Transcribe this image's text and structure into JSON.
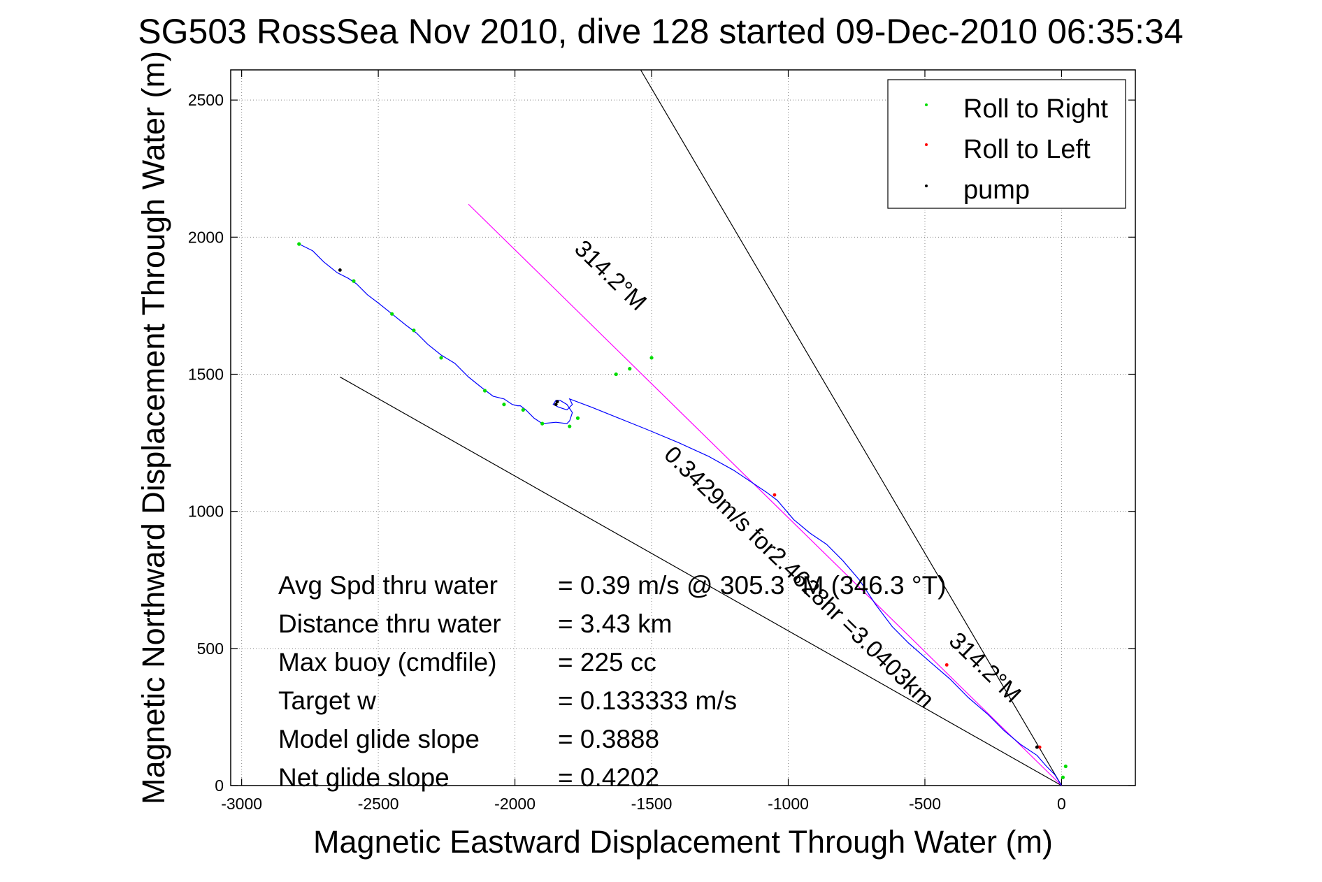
{
  "chart_data": {
    "type": "line",
    "title": "SG503 RossSea Nov 2010, dive 128 started 09-Dec-2010 06:35:34",
    "xlabel": "Magnetic Eastward Displacement Through Water (m)",
    "ylabel": "Magnetic Northward Displacement Through Water (m)",
    "xlim": [
      -3040,
      270
    ],
    "ylim": [
      0,
      2610
    ],
    "grid": true,
    "x_ticks": [
      -3000,
      -2500,
      -2000,
      -1500,
      -1000,
      -500,
      0
    ],
    "x_tick_labels": [
      "-3000",
      "-2500",
      "-2000",
      "-1500",
      "-1000",
      "-500",
      "0"
    ],
    "y_ticks": [
      0,
      500,
      1000,
      1500,
      2000,
      2500
    ],
    "y_tick_labels": [
      "0",
      "500",
      "1000",
      "1500",
      "2000",
      "2500"
    ],
    "legend_position": "top-right",
    "legend": [
      {
        "label": "Roll to Right",
        "color": "#00dd00"
      },
      {
        "label": "Roll to Left",
        "color": "#ff0000"
      },
      {
        "label": "pump",
        "color": "#000000"
      }
    ],
    "track": {
      "color": "#0000ff",
      "x": [
        0,
        -25,
        -55,
        -90,
        -150,
        -210,
        -270,
        -340,
        -410,
        -480,
        -560,
        -620,
        -680,
        -740,
        -800,
        -860,
        -920,
        -980,
        -1040,
        -1080,
        -1140,
        -1200,
        -1290,
        -1400,
        -1520,
        -1620,
        -1720,
        -1800,
        -1790,
        -1810,
        -1840,
        -1860,
        -1850,
        -1835,
        -1810,
        -1790,
        -1800,
        -1810,
        -1850,
        -1900,
        -1930,
        -1960,
        -1980,
        -1990,
        -2010,
        -2040,
        -2080,
        -2120,
        -2170,
        -2220,
        -2270,
        -2320,
        -2360,
        -2400,
        -2450,
        -2500,
        -2540,
        -2580,
        -2610,
        -2650,
        -2700,
        -2740,
        -2790
      ],
      "y": [
        0,
        40,
        70,
        110,
        150,
        200,
        260,
        320,
        390,
        450,
        520,
        580,
        660,
        750,
        820,
        880,
        920,
        970,
        1040,
        1070,
        1110,
        1150,
        1200,
        1250,
        1300,
        1340,
        1380,
        1410,
        1390,
        1370,
        1380,
        1390,
        1405,
        1405,
        1390,
        1360,
        1330,
        1320,
        1325,
        1320,
        1340,
        1370,
        1385,
        1385,
        1390,
        1410,
        1420,
        1450,
        1490,
        1540,
        1570,
        1610,
        1650,
        1680,
        1720,
        1760,
        1790,
        1830,
        1850,
        1870,
        1910,
        1950,
        1975
      ]
    },
    "heading_lines": [
      {
        "color": "#000000",
        "x": [
          0,
          -1540
        ],
        "y": [
          0,
          2610
        ]
      },
      {
        "color": "#000000",
        "x": [
          0,
          -2640
        ],
        "y": [
          0,
          1490
        ]
      },
      {
        "color": "#ff00ff",
        "x": [
          0,
          -2170
        ],
        "y": [
          0,
          2120
        ]
      }
    ],
    "roll_right_points": {
      "x": [
        5,
        15,
        -2790,
        -2590,
        -2450,
        -2370,
        -2270,
        -2110,
        -2040,
        -1970,
        -1900,
        -1800,
        -1770,
        -1630,
        -1580,
        -1500
      ],
      "y": [
        30,
        70,
        1975,
        1840,
        1720,
        1660,
        1560,
        1440,
        1390,
        1370,
        1320,
        1310,
        1340,
        1500,
        1520,
        1560
      ]
    },
    "roll_left_points": {
      "x": [
        -80,
        -420,
        -1050
      ],
      "y": [
        140,
        440,
        1060
      ]
    },
    "pump_points": {
      "x": [
        -2640,
        -1850,
        -1845,
        -90
      ],
      "y": [
        1880,
        1390,
        1400,
        140
      ]
    },
    "annotations": [
      {
        "text": "314.2°M",
        "x": -1670,
        "y": 1840,
        "rotation": 224
      },
      {
        "text": "0.3429m/s for2.4628hr =3.0403km",
        "x": -980,
        "y": 740,
        "rotation": 224
      },
      {
        "text": "314.2°M",
        "x": -300,
        "y": 410,
        "rotation": 224
      }
    ],
    "stats": [
      {
        "label": "Avg Spd thru water",
        "value": "=  0.39 m/s @  305.3  °M (346.3 °T)"
      },
      {
        "label": "Distance thru water",
        "value": "=  3.43 km"
      },
      {
        "label": "Max buoy (cmdfile)",
        "value": "= 225 cc"
      },
      {
        "label": "Target w",
        "value": "= 0.133333 m/s"
      },
      {
        "label": "Model glide slope",
        "value": "= 0.3888"
      },
      {
        "label": "Net glide slope",
        "value": "= 0.4202"
      }
    ]
  }
}
